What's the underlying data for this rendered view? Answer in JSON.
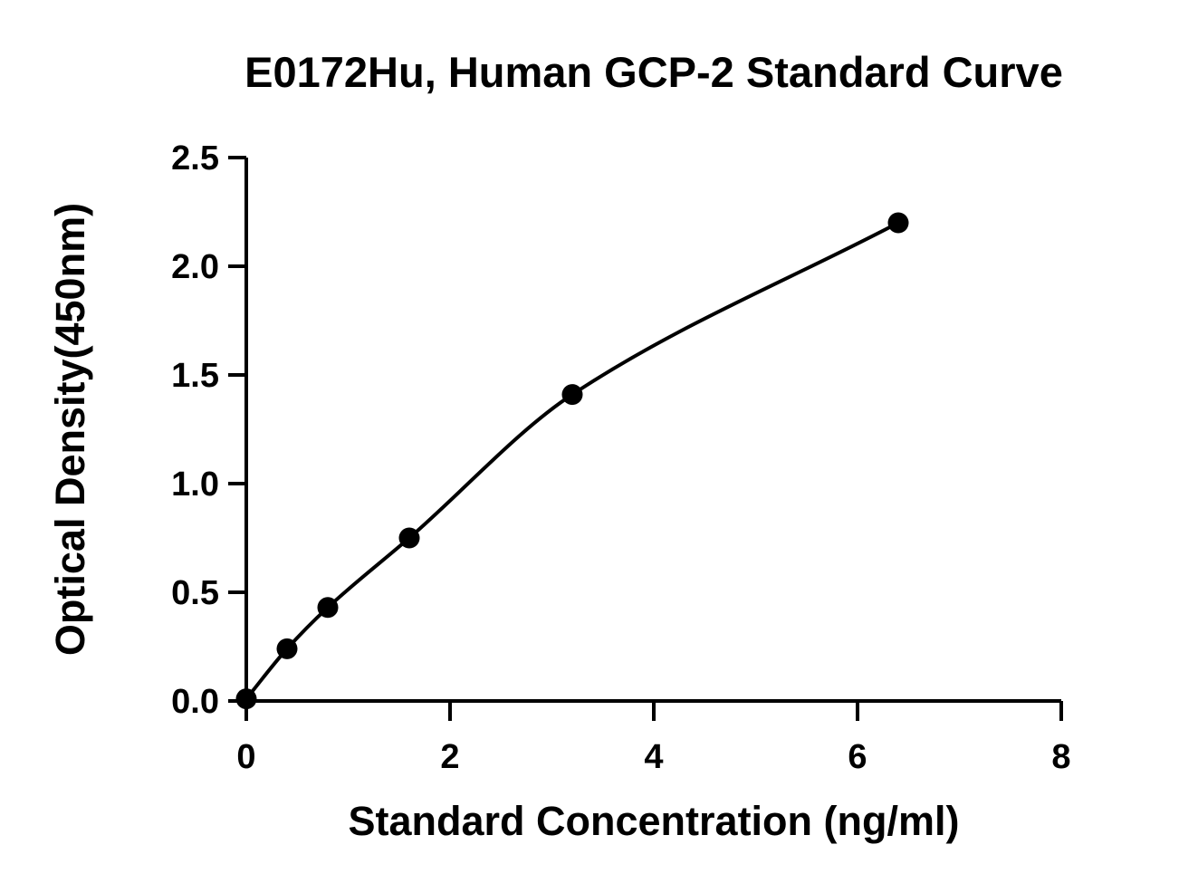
{
  "chart_data": {
    "type": "scatter",
    "title": "E0172Hu, Human GCP-2 Standard Curve",
    "xlabel": "Standard Concentration (ng/ml)",
    "ylabel": "Optical Density(450nm)",
    "xlim": [
      0,
      8
    ],
    "ylim": [
      0,
      2.5
    ],
    "x_ticks": [
      "0",
      "2",
      "4",
      "6",
      "8"
    ],
    "y_ticks": [
      "0.0",
      "0.5",
      "1.0",
      "1.5",
      "2.0",
      "2.5"
    ],
    "grid": false,
    "series": [
      {
        "x": [
          0,
          0.4,
          0.8,
          1.6,
          3.2,
          6.4
        ],
        "y": [
          0.01,
          0.24,
          0.43,
          0.75,
          1.41,
          2.2
        ],
        "color": "#000000",
        "marker": "circle",
        "fit_line": true
      }
    ]
  }
}
